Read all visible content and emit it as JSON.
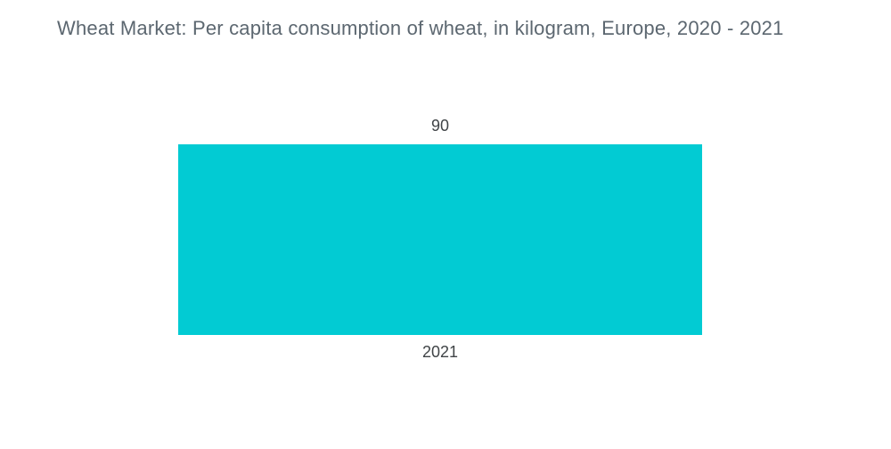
{
  "page": {
    "background_color": "#FFFFFF"
  },
  "colors": {
    "title_text": "#5C6770",
    "label_text": "#404447",
    "bar_fill": "#02CBD3"
  },
  "chart_data": {
    "type": "bar",
    "orientation": "vertical",
    "title": "Wheat Market: Per capita consumption of wheat, in kilogram, Europe, 2020 - 2021",
    "categories": [
      "2021"
    ],
    "values": [
      90
    ],
    "value_labels": [
      "90"
    ],
    "series": [
      {
        "name": "Per capita consumption of wheat (kg)",
        "values": [
          90
        ]
      }
    ],
    "xlabel": "",
    "ylabel": "",
    "ylim": [
      0,
      100
    ],
    "grid": false,
    "axes_visible": false,
    "legend": "none",
    "bar_color": "#02CBD3"
  }
}
